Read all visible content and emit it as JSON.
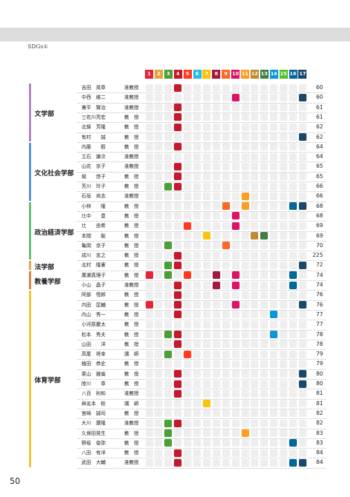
{
  "header": {
    "title": "SDGs①"
  },
  "goals": [
    {
      "number": 1,
      "color": "#e5243b"
    },
    {
      "number": 2,
      "color": "#dda63a"
    },
    {
      "number": 3,
      "color": "#4c9f38"
    },
    {
      "number": 4,
      "color": "#c5192d"
    },
    {
      "number": 5,
      "color": "#ff3a21"
    },
    {
      "number": 6,
      "color": "#26bde2"
    },
    {
      "number": 7,
      "color": "#fcc30b"
    },
    {
      "number": 8,
      "color": "#a21942"
    },
    {
      "number": 9,
      "color": "#fd6925"
    },
    {
      "number": 10,
      "color": "#dd1367"
    },
    {
      "number": 11,
      "color": "#fd9d24"
    },
    {
      "number": 12,
      "color": "#bf8b2e"
    },
    {
      "number": 13,
      "color": "#3f7e44"
    },
    {
      "number": 14,
      "color": "#0a97d9"
    },
    {
      "number": 15,
      "color": "#56c02b"
    },
    {
      "number": 16,
      "color": "#00689d"
    },
    {
      "number": 17,
      "color": "#19486a"
    }
  ],
  "departments": [
    {
      "name": "文学部",
      "color": "#b07cc0",
      "members": [
        {
          "name": "吉田　晃章",
          "title": "准教授",
          "page": 60,
          "sdgs": [
            4
          ]
        },
        {
          "name": "中西　維二",
          "title": "准教授",
          "page": 60,
          "sdgs": [
            10,
            17
          ]
        },
        {
          "name": "兼平　賢治",
          "title": "准教授",
          "page": 61,
          "sdgs": [
            4
          ]
        },
        {
          "name": "三佐川亮宏",
          "title": "教　授",
          "page": 61,
          "sdgs": [
            4
          ]
        },
        {
          "name": "北條　芳隆",
          "title": "教　授",
          "page": 62,
          "sdgs": [
            4
          ]
        },
        {
          "name": "有村　　誠",
          "title": "教　授",
          "page": 62,
          "sdgs": [
            17
          ]
        }
      ]
    },
    {
      "name": "文化社会学部",
      "color": "#4f8fd0",
      "members": [
        {
          "name": "内藤　　醇",
          "title": "教　授",
          "page": 64,
          "sdgs": [
            4
          ]
        },
        {
          "name": "立石　謙次",
          "title": "准教授",
          "page": 64,
          "sdgs": []
        },
        {
          "name": "山花　京子",
          "title": "准教授",
          "page": 65,
          "sdgs": [
            4
          ]
        },
        {
          "name": "堀　　啓子",
          "title": "教　授",
          "page": 65,
          "sdgs": [
            4
          ]
        },
        {
          "name": "芳川　玲子",
          "title": "教　授",
          "page": 66,
          "sdgs": [
            3,
            4
          ]
        },
        {
          "name": "石垣　尚志",
          "title": "准教授",
          "page": 66,
          "sdgs": [
            11
          ]
        }
      ]
    },
    {
      "name": "政治経済学部",
      "color": "#5fb86a",
      "members": [
        {
          "name": "小林　　隆",
          "title": "教　授",
          "page": 68,
          "sdgs": [
            9,
            11,
            16,
            17
          ]
        },
        {
          "name": "辻中　　豊",
          "title": "教　授",
          "page": 68,
          "sdgs": [
            10
          ]
        },
        {
          "name": "辻　　由希",
          "title": "教　授",
          "page": 69,
          "sdgs": [
            5,
            10
          ]
        },
        {
          "name": "本間　　聡",
          "title": "教　授",
          "page": 69,
          "sdgs": [
            7,
            12,
            13
          ]
        },
        {
          "name": "亀岡　京子",
          "title": "教　授",
          "page": 70,
          "sdgs": [
            3,
            9
          ]
        },
        {
          "name": "成川　忠之",
          "title": "教　授",
          "page": 225,
          "sdgs": [
            4
          ]
        }
      ]
    },
    {
      "name": "法学部",
      "color": "#e8a33c",
      "members": [
        {
          "name": "北村　隆憲",
          "title": "教　授",
          "page": 72,
          "sdgs": [
            3,
            4,
            17
          ]
        }
      ]
    },
    {
      "name": "教養学部",
      "color": "#e07a3a",
      "members": [
        {
          "name": "廣瀬真理子",
          "title": "教　授",
          "page": 74,
          "sdgs": [
            1,
            3,
            5,
            8,
            10,
            16
          ]
        },
        {
          "name": "小山　晶子",
          "title": "准教授",
          "page": 74,
          "sdgs": [
            4,
            8,
            10,
            16
          ]
        }
      ]
    },
    {
      "name": "体育学部",
      "color": "#f2c230",
      "members": [
        {
          "name": "阿部　悟郎",
          "title": "教　授",
          "page": 76,
          "sdgs": [
            4
          ]
        },
        {
          "name": "内田　匡輔",
          "title": "教　授",
          "page": 76,
          "sdgs": [
            1,
            4,
            10,
            17
          ]
        },
        {
          "name": "内山　秀一",
          "title": "教　授",
          "page": 77,
          "sdgs": [
            4,
            14
          ]
        },
        {
          "name": "小河原慶太",
          "title": "教　授",
          "page": 77,
          "sdgs": []
        },
        {
          "name": "松本　秀夫",
          "title": "教　授",
          "page": 78,
          "sdgs": [
            3,
            4,
            14
          ]
        },
        {
          "name": "山田　　洋",
          "title": "教　授",
          "page": 78,
          "sdgs": [
            4
          ]
        },
        {
          "name": "高尾　将幸",
          "title": "講　師",
          "page": 79,
          "sdgs": [
            3,
            5
          ]
        },
        {
          "name": "植田　恭史",
          "title": "教　授",
          "page": 79,
          "sdgs": []
        },
        {
          "name": "栗山　雅倫",
          "title": "教　授",
          "page": 80,
          "sdgs": [
            4,
            17
          ]
        },
        {
          "name": "陸川　　章",
          "title": "教　授",
          "page": 80,
          "sdgs": [
            4,
            17
          ]
        },
        {
          "name": "八百　則和",
          "title": "准教授",
          "page": 81,
          "sdgs": [
            4
          ]
        },
        {
          "name": "與名本　稔",
          "title": "講　師",
          "page": 81,
          "sdgs": [
            7
          ]
        },
        {
          "name": "宮崎　誠司",
          "title": "教　授",
          "page": 82,
          "sdgs": []
        },
        {
          "name": "大川　康隆",
          "title": "准教授",
          "page": 82,
          "sdgs": [
            3,
            4
          ]
        },
        {
          "name": "久保田晃生",
          "title": "教　授",
          "page": 83,
          "sdgs": [
            3,
            11
          ]
        },
        {
          "name": "野坂　俊弥",
          "title": "教　授",
          "page": 83,
          "sdgs": [
            3,
            16
          ]
        },
        {
          "name": "八田　有洋",
          "title": "教　授",
          "page": 84,
          "sdgs": [
            4
          ]
        },
        {
          "name": "武田　大輔",
          "title": "准教授",
          "page": 84,
          "sdgs": [
            4,
            16,
            17
          ]
        }
      ]
    }
  ],
  "footer": {
    "page_number": "50"
  }
}
